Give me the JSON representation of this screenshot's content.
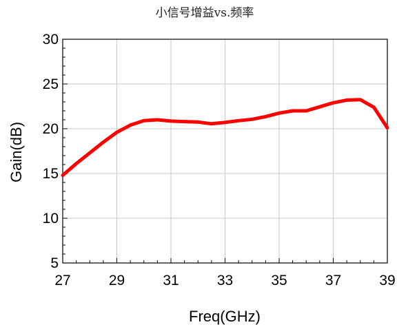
{
  "chart_data": {
    "type": "line",
    "title": "小信号增益vs.频率",
    "xlabel": "Freq(GHz)",
    "ylabel": "Gain(dB)",
    "xlim": [
      27,
      39
    ],
    "ylim": [
      5,
      30
    ],
    "x_ticks": [
      27,
      29,
      31,
      33,
      35,
      37,
      39
    ],
    "y_ticks": [
      5,
      10,
      15,
      20,
      25,
      30
    ],
    "x_tick_labels": [
      "27",
      "29",
      "31",
      "33",
      "35",
      "37",
      "39"
    ],
    "y_tick_labels": [
      "5",
      "10",
      "15",
      "20",
      "25",
      "30"
    ],
    "grid": true,
    "legend": "none",
    "series": [
      {
        "color": "#ff0000",
        "x": [
          27,
          27.5,
          28,
          28.5,
          29,
          29.5,
          30,
          30.5,
          31,
          31.5,
          32,
          32.5,
          33,
          33.5,
          34,
          34.5,
          35,
          35.5,
          36,
          36.5,
          37,
          37.5,
          38,
          38.5,
          39
        ],
        "y": [
          14.8,
          16.1,
          17.3,
          18.5,
          19.6,
          20.4,
          20.9,
          21.0,
          20.85,
          20.8,
          20.75,
          20.55,
          20.7,
          20.9,
          21.05,
          21.35,
          21.75,
          22.0,
          22.0,
          22.45,
          22.9,
          23.2,
          23.25,
          22.4,
          20.1
        ]
      }
    ]
  }
}
